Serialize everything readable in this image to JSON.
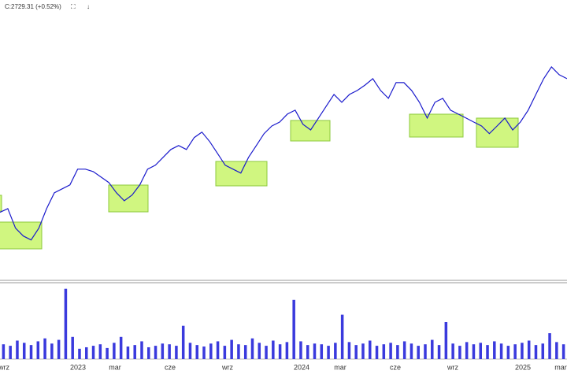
{
  "chart_data": [
    {
      "type": "line",
      "annotation": "C:2729.31 (+0.52%)",
      "color": "#1a1acc",
      "ylim": [
        1660,
        3065
      ],
      "values": [
        2018,
        2038,
        1934,
        1892,
        1871,
        1934,
        2038,
        2122,
        2143,
        2164,
        2248,
        2248,
        2235,
        2206,
        2177,
        2122,
        2080,
        2110,
        2164,
        2248,
        2269,
        2311,
        2353,
        2374,
        2353,
        2416,
        2445,
        2395,
        2332,
        2269,
        2248,
        2227,
        2311,
        2374,
        2437,
        2478,
        2499,
        2541,
        2562,
        2487,
        2457,
        2520,
        2583,
        2646,
        2604,
        2646,
        2667,
        2696,
        2730,
        2667,
        2625,
        2709,
        2709,
        2667,
        2604,
        2520,
        2604,
        2625,
        2562,
        2541,
        2520,
        2499,
        2478,
        2437,
        2478,
        2520,
        2457,
        2499,
        2562,
        2646,
        2730,
        2793,
        2751,
        2730
      ]
    },
    {
      "type": "bar",
      "color": "#3a3add",
      "ylim": [
        0,
        100
      ],
      "values": [
        20,
        18,
        25,
        22,
        19,
        24,
        28,
        21,
        26,
        95,
        30,
        14,
        16,
        18,
        20,
        15,
        22,
        30,
        17,
        19,
        24,
        16,
        18,
        21,
        20,
        18,
        45,
        22,
        19,
        17,
        21,
        24,
        18,
        26,
        20,
        19,
        28,
        22,
        18,
        25,
        20,
        23,
        80,
        24,
        19,
        21,
        20,
        18,
        22,
        60,
        23,
        19,
        21,
        25,
        18,
        20,
        22,
        19,
        24,
        21,
        18,
        20,
        26,
        19,
        50,
        21,
        18,
        23,
        20,
        22,
        19,
        24,
        21,
        18,
        20,
        22,
        25,
        19,
        21,
        35,
        23,
        20
      ],
      "x_labels": [
        "wrz",
        "2023",
        "mar",
        "cze",
        "wrz",
        "2024",
        "mar",
        "cze",
        "wrz",
        "2025",
        "mar"
      ]
    }
  ]
}
